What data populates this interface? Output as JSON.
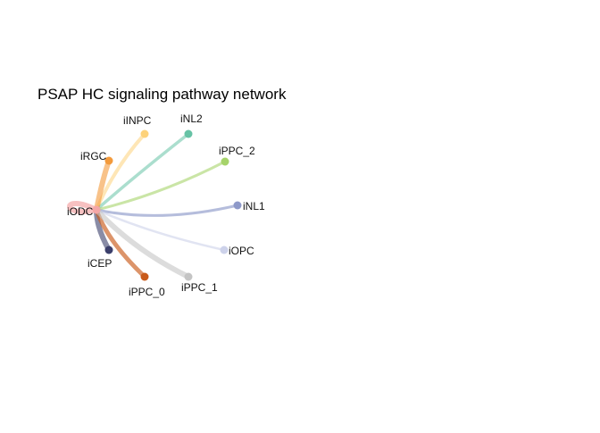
{
  "figure": {
    "title": "PSAP HC signaling pathway network"
  },
  "network": {
    "source": {
      "name": "iODC",
      "color": "#f4a6a6"
    },
    "targets": [
      {
        "name": "iINPC",
        "color": "#fdd27a"
      },
      {
        "name": "iNL2",
        "color": "#66c2a5"
      },
      {
        "name": "iRGC",
        "color": "#f39a3b"
      },
      {
        "name": "iPPC_2",
        "color": "#a6d36a"
      },
      {
        "name": "iNL1",
        "color": "#8e99c9"
      },
      {
        "name": "iOPC",
        "color": "#cdd2ea"
      },
      {
        "name": "iCEP",
        "color": "#3b3f6b"
      },
      {
        "name": "iPPC_0",
        "color": "#c95a1a"
      },
      {
        "name": "iPPC_1",
        "color": "#c4c4c4"
      }
    ]
  }
}
